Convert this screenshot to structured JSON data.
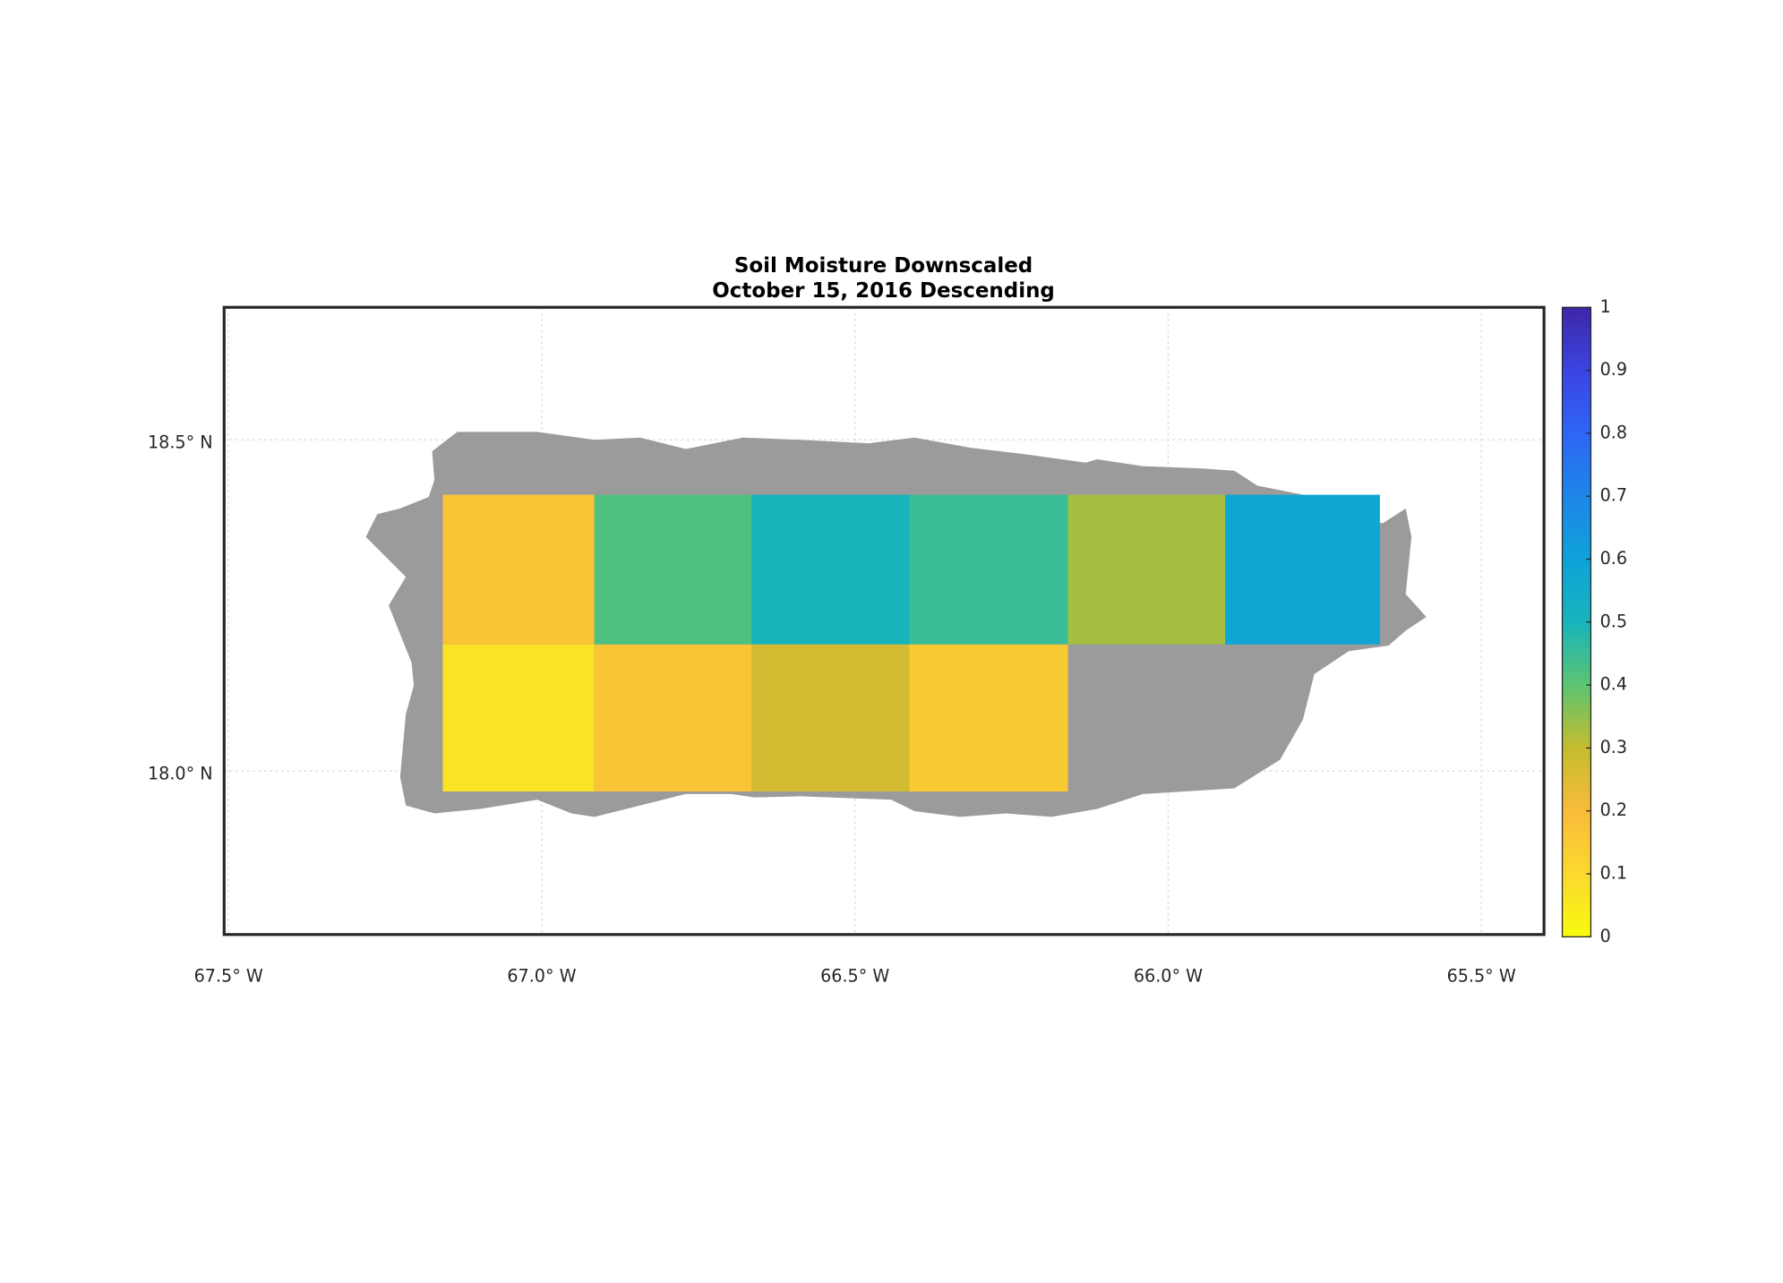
{
  "chart_data": {
    "type": "map",
    "title": [
      "Soil Moisture Downscaled",
      "October 15, 2016 Descending"
    ],
    "xlim": [
      -67.507,
      -65.4
    ],
    "ylim": [
      17.753,
      18.7
    ],
    "xticks": [
      {
        "value": -67.5,
        "label": "67.5° W"
      },
      {
        "value": -67.0,
        "label": "67.0° W"
      },
      {
        "value": -66.5,
        "label": "66.5° W"
      },
      {
        "value": -66.0,
        "label": "66.0° W"
      },
      {
        "value": -65.5,
        "label": "65.5° W"
      }
    ],
    "yticks": [
      {
        "value": 18.5,
        "label": "18.5° N"
      },
      {
        "value": 18.0,
        "label": "18.0° N"
      }
    ],
    "grid": true,
    "land_color": "#9b9b9b",
    "colormap": [
      "#f9fb0e",
      "#fbd82f",
      "#f9bb3a",
      "#c4bc2e",
      "#5cc472",
      "#18b4bc",
      "#0ea2d9",
      "#1e86e8",
      "#2d66f5",
      "#3b44e0",
      "#3e26a8"
    ],
    "clim": [
      0,
      1
    ],
    "cticks": [
      0,
      0.1,
      0.2,
      0.3,
      0.4,
      0.5,
      0.6,
      0.7,
      0.8,
      0.9,
      1
    ],
    "cells": [
      {
        "lon": [
          -67.158,
          -66.916
        ],
        "lat": [
          18.191,
          18.417
        ],
        "value": 0.17
      },
      {
        "lon": [
          -66.916,
          -66.665
        ],
        "lat": [
          18.191,
          18.417
        ],
        "value": 0.42
      },
      {
        "lon": [
          -66.665,
          -66.413
        ],
        "lat": [
          18.191,
          18.417
        ],
        "value": 0.5
      },
      {
        "lon": [
          -66.413,
          -66.16
        ],
        "lat": [
          18.191,
          18.417
        ],
        "value": 0.45
      },
      {
        "lon": [
          -66.16,
          -65.909
        ],
        "lat": [
          18.191,
          18.417
        ],
        "value": 0.33
      },
      {
        "lon": [
          -65.909,
          -65.662
        ],
        "lat": [
          18.191,
          18.417
        ],
        "value": 0.58
      },
      {
        "lon": [
          -67.158,
          -66.916
        ],
        "lat": [
          17.969,
          18.191
        ],
        "value": 0.07
      },
      {
        "lon": [
          -66.916,
          -66.665
        ],
        "lat": [
          17.969,
          18.191
        ],
        "value": 0.17
      },
      {
        "lon": [
          -66.665,
          -66.413
        ],
        "lat": [
          17.969,
          18.191
        ],
        "value": 0.27
      },
      {
        "lon": [
          -66.413,
          -66.16
        ],
        "lat": [
          17.969,
          18.191
        ],
        "value": 0.15
      }
    ]
  }
}
